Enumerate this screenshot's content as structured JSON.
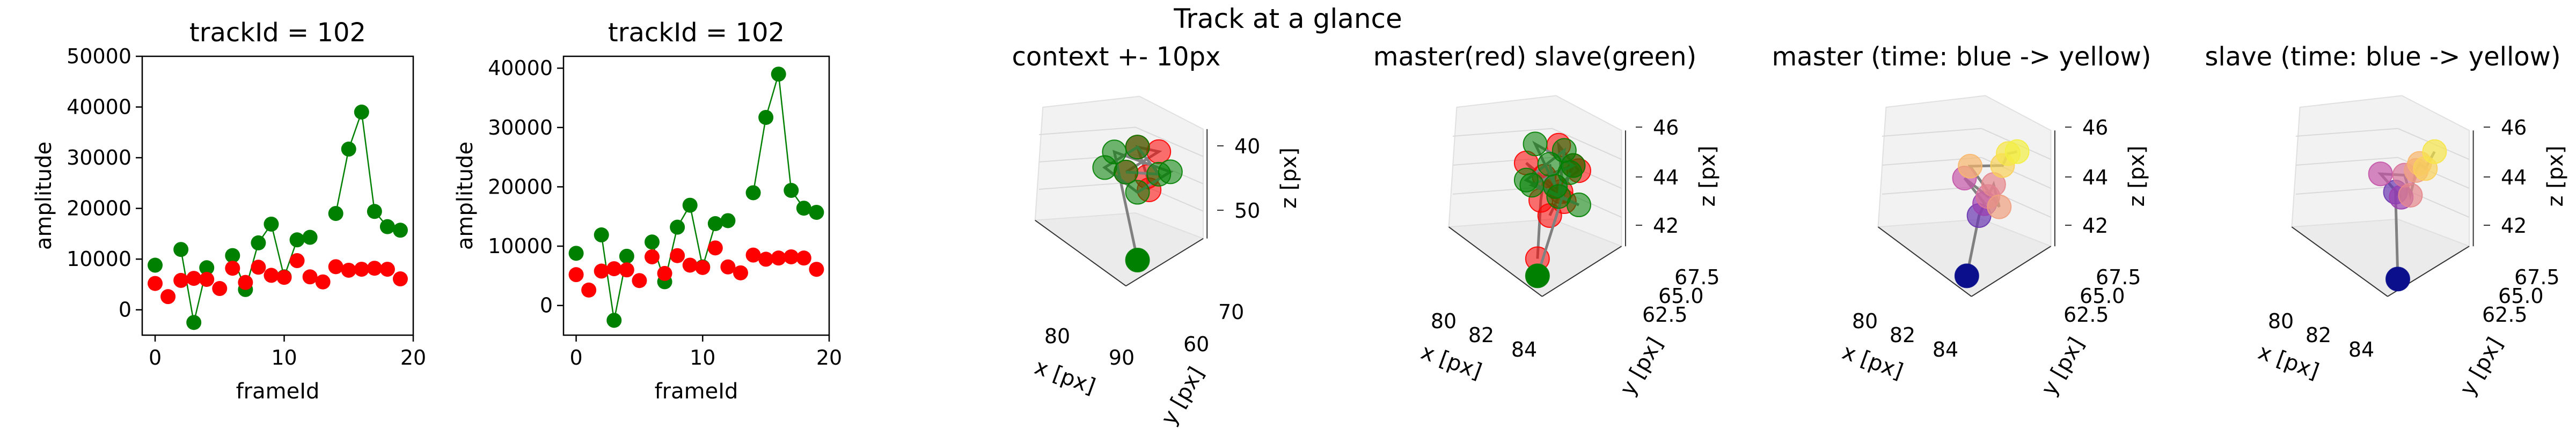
{
  "figure": {
    "suptitle": "Track at a glance"
  },
  "chart_data": [
    {
      "type": "scatter",
      "title": "trackId = 102",
      "xlabel": "frameId",
      "ylabel": "amplitude",
      "xlim": [
        -1,
        20
      ],
      "ylim": [
        -5000,
        50000
      ],
      "xticks": [
        0,
        10,
        20
      ],
      "yticks": [
        0,
        10000,
        20000,
        30000,
        40000,
        50000
      ],
      "grid": false,
      "series": [
        {
          "color": "#008000",
          "line": true,
          "x": [
            0,
            1,
            2,
            3,
            4,
            5,
            6,
            7,
            8,
            9,
            10,
            11,
            12,
            13,
            14,
            15,
            16,
            17,
            18,
            19
          ],
          "y": [
            8800,
            null,
            11900,
            -2500,
            8300,
            null,
            10700,
            4000,
            13200,
            16900,
            6500,
            13800,
            14300,
            null,
            19000,
            31700,
            39000,
            19400,
            16400,
            15700
          ]
        },
        {
          "color": "#ff0000",
          "line": false,
          "x": [
            0,
            1,
            2,
            3,
            4,
            5,
            6,
            7,
            8,
            9,
            10,
            11,
            12,
            13,
            14,
            15,
            16,
            17,
            18,
            19
          ],
          "y": [
            5200,
            2600,
            5800,
            6200,
            6000,
            4200,
            8200,
            5400,
            8400,
            6800,
            6400,
            9700,
            6500,
            5500,
            8500,
            7800,
            8000,
            8200,
            8000,
            6100
          ]
        }
      ]
    },
    {
      "type": "scatter",
      "title": "trackId = 102",
      "xlabel": "frameId",
      "ylabel": "amplitude",
      "xlim": [
        -1,
        20
      ],
      "ylim": [
        -5000,
        42000
      ],
      "xticks": [
        0,
        10,
        20
      ],
      "yticks": [
        0,
        10000,
        20000,
        30000,
        40000
      ],
      "grid": false,
      "series": [
        {
          "color": "#008000",
          "line": true,
          "x": [
            0,
            1,
            2,
            3,
            4,
            5,
            6,
            7,
            8,
            9,
            10,
            11,
            12,
            13,
            14,
            15,
            16,
            17,
            18,
            19
          ],
          "y": [
            8800,
            null,
            11900,
            -2500,
            8300,
            null,
            10700,
            4000,
            13200,
            16900,
            6500,
            13800,
            14300,
            null,
            19000,
            31700,
            39000,
            19400,
            16400,
            15700
          ]
        },
        {
          "color": "#ff0000",
          "line": false,
          "x": [
            0,
            1,
            2,
            3,
            4,
            5,
            6,
            7,
            8,
            9,
            10,
            11,
            12,
            13,
            14,
            15,
            16,
            17,
            18,
            19
          ],
          "y": [
            5200,
            2600,
            5800,
            6200,
            6000,
            4200,
            8200,
            5400,
            8400,
            6800,
            6400,
            9700,
            6500,
            5500,
            8500,
            7800,
            8000,
            8200,
            8000,
            6100
          ]
        }
      ]
    },
    {
      "type": "scatter3d",
      "title": "context +- 10px",
      "xlabel": "x [px]",
      "ylabel": "y [px]",
      "zlabel": "z [px]",
      "xticks": [
        "80",
        "90"
      ],
      "yticks": [
        "60",
        "70"
      ],
      "zticks": [
        "40",
        "50"
      ],
      "series": [
        {
          "color": "#ff0000",
          "points": [
            [
              84,
              64,
              44
            ],
            [
              85,
              65,
              45
            ],
            [
              84,
              65,
              45
            ],
            [
              85,
              64,
              44
            ],
            [
              84,
              66,
              43
            ]
          ]
        },
        {
          "color": "#008000",
          "points": [
            [
              84,
              64,
              44
            ],
            [
              85,
              65,
              44
            ],
            [
              84,
              65,
              45
            ],
            [
              83,
              64,
              44
            ],
            [
              84,
              65,
              43
            ],
            [
              85,
              66,
              44
            ],
            [
              84,
              63,
              45
            ],
            [
              84,
              65,
              40
            ]
          ]
        }
      ]
    },
    {
      "type": "scatter3d",
      "title": "master(red) slave(green)",
      "xlabel": "x [px]",
      "ylabel": "y [px]",
      "zlabel": "z [px]",
      "xticks": [
        "80",
        "82",
        "84"
      ],
      "yticks": [
        "62.5",
        "65.0",
        "67.5"
      ],
      "zticks": [
        "42",
        "44",
        "46"
      ],
      "series": [
        {
          "color": "#ff0000",
          "points": [
            [
              84,
              64,
              44
            ],
            [
              85,
              65,
              45
            ],
            [
              83,
              66,
              46
            ],
            [
              84,
              65,
              43
            ],
            [
              82,
              64,
              45
            ],
            [
              85,
              63,
              44
            ],
            [
              83,
              65,
              42
            ],
            [
              84,
              66,
              45
            ],
            [
              82,
              66,
              44
            ],
            [
              83,
              64,
              43
            ],
            [
              84,
              62,
              40
            ]
          ]
        },
        {
          "color": "#008000",
          "points": [
            [
              83,
              65,
              45
            ],
            [
              84,
              64,
              44
            ],
            [
              82,
              65,
              46
            ],
            [
              84,
              66,
              45
            ],
            [
              83,
              63,
              44
            ],
            [
              85,
              65,
              43
            ],
            [
              82,
              64,
              44
            ],
            [
              84,
              65,
              46
            ],
            [
              83,
              66,
              43
            ],
            [
              85,
              64,
              45
            ],
            [
              84,
              62,
              39
            ]
          ]
        }
      ]
    },
    {
      "type": "scatter3d",
      "title": "master (time: blue -> yellow)",
      "xlabel": "x [px]",
      "ylabel": "y [px]",
      "zlabel": "z [px]",
      "xticks": [
        "80",
        "82",
        "84"
      ],
      "yticks": [
        "62.5",
        "65.0",
        "67.5"
      ],
      "zticks": [
        "42",
        "44",
        "46"
      ],
      "series": [
        {
          "color": "time",
          "points": [
            [
              84,
              62,
              40
            ],
            [
              83,
              65,
              43
            ],
            [
              84,
              64,
              44
            ],
            [
              82,
              65,
              45
            ],
            [
              83,
              66,
              44
            ],
            [
              84,
              65,
              45
            ],
            [
              85,
              64,
              44
            ],
            [
              83,
              64,
              46
            ],
            [
              84,
              66,
              46
            ],
            [
              85,
              65,
              47
            ],
            [
              85,
              66,
              47
            ]
          ]
        }
      ]
    },
    {
      "type": "scatter3d",
      "title": "slave (time: blue -> yellow)",
      "xlabel": "x [px]",
      "ylabel": "y [px]",
      "zlabel": "z [px]",
      "xticks": [
        "80",
        "82",
        "84"
      ],
      "yticks": [
        "62.5",
        "65.0",
        "67.5"
      ],
      "zticks": [
        "42",
        "44",
        "46"
      ],
      "series": [
        {
          "color": "time",
          "points": [
            [
              85,
              62,
              39
            ],
            [
              83,
              65,
              44
            ],
            [
              84,
              64,
              44
            ],
            [
              82,
              65,
              45
            ],
            [
              83,
              66,
              45
            ],
            [
              84,
              65,
              44
            ],
            [
              85,
              64,
              46
            ],
            [
              84,
              66,
              46
            ],
            [
              85,
              65,
              46
            ],
            [
              85,
              66,
              47
            ]
          ]
        }
      ]
    }
  ]
}
